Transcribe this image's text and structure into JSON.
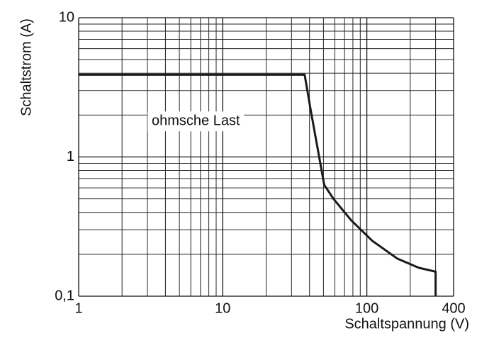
{
  "chart_data": {
    "type": "line",
    "x_label": "Schaltspannung (V)",
    "y_label": "Schaltstrom (A)",
    "xlog": true,
    "ylog": true,
    "grid": true,
    "xlim": [
      1,
      400
    ],
    "xticks": [
      1,
      10,
      100,
      400
    ],
    "ylim": [
      0.1,
      10
    ],
    "yticks": [
      {
        "value": 0.1,
        "label": "0,1"
      },
      1,
      10
    ],
    "series": [
      {
        "name": "ohmsche Last",
        "color": "#1a1a1a",
        "x": [
          1,
          37,
          40.8,
          50.6,
          58.7,
          78,
          109,
          163,
          229,
          300,
          300
        ],
        "values": [
          3.9,
          3.9,
          2.16,
          0.63,
          0.5,
          0.35,
          0.25,
          0.186,
          0.16,
          0.15,
          0.1
        ]
      }
    ]
  }
}
